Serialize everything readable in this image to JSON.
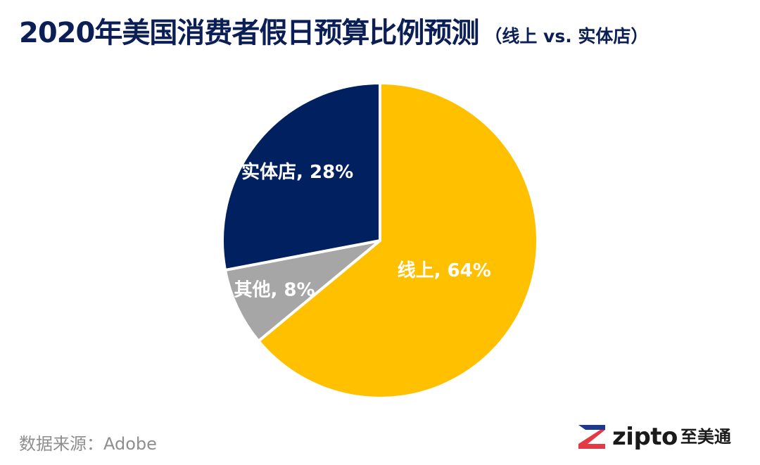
{
  "chart_data": {
    "type": "pie",
    "title": "2020年美国消费者假日预算比例预测",
    "subtitle": "（线上 vs. 实体店）",
    "slices": [
      {
        "label": "线上, 64%",
        "name": "线上",
        "value": 64,
        "color": "#ffc000"
      },
      {
        "label": "其他, 8%",
        "name": "其他",
        "value": 8,
        "color": "#a6a6a6"
      },
      {
        "label": "实体店, 28%",
        "name": "实体店",
        "value": 28,
        "color": "#002060"
      }
    ],
    "legend": "none"
  },
  "footer": {
    "source": "数据来源：Adobe",
    "logo_en": "zipto",
    "logo_cn": "至美通",
    "logo_colors": {
      "top": "#1e3a8a",
      "bottom": "#e63946"
    }
  }
}
